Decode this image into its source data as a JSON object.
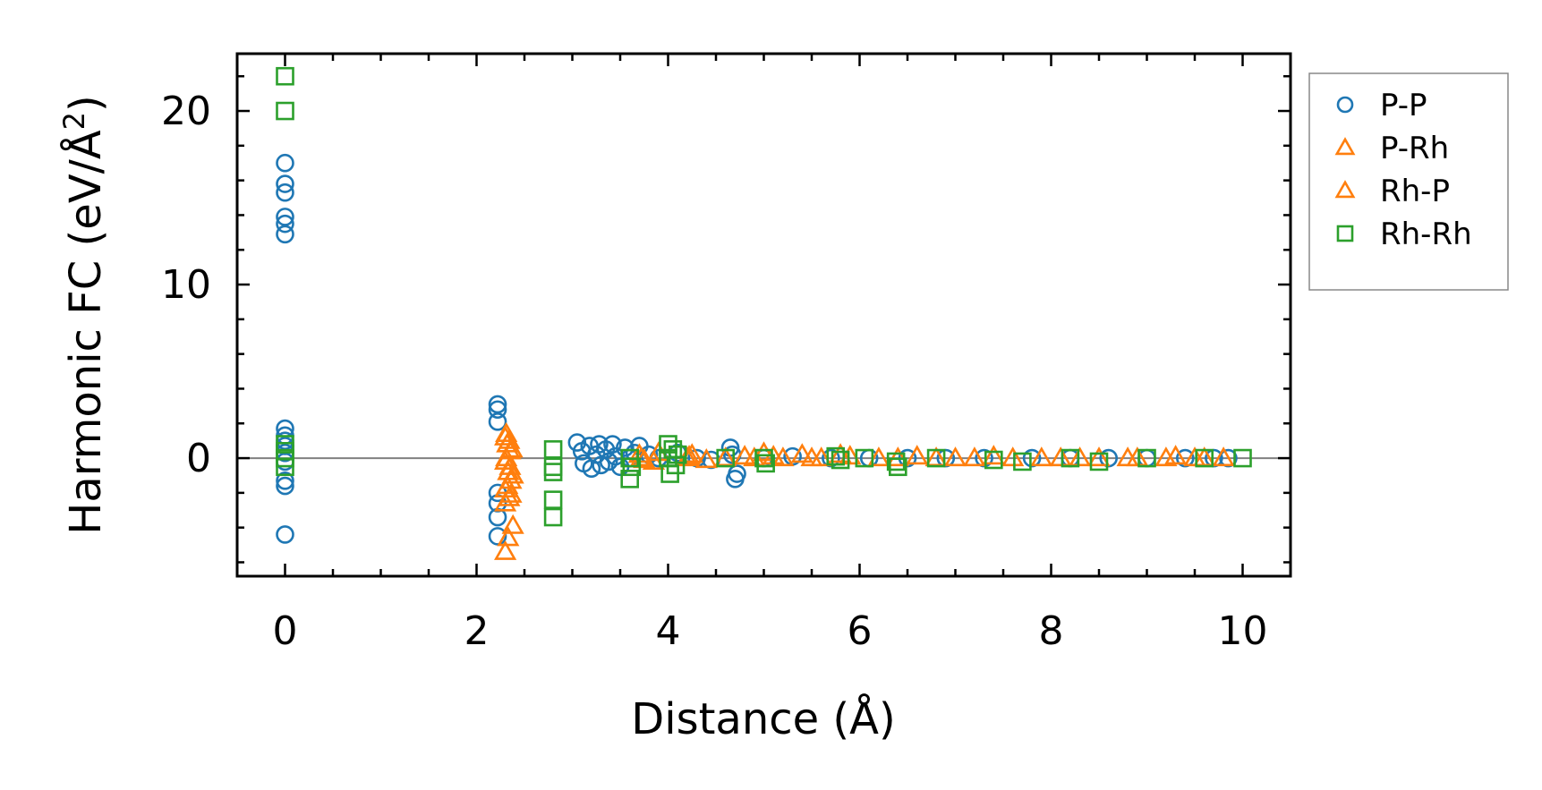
{
  "chart_data": {
    "type": "scatter",
    "xlabel": "Distance (Å)",
    "ylabel_main": "Harmonic FC (eV/Å",
    "ylabel_sup": "2",
    "ylabel_end": ")",
    "xlim": [
      -0.5,
      10.5
    ],
    "ylim": [
      -6.8,
      23.3
    ],
    "x_ticks": [
      0,
      2,
      4,
      6,
      8,
      10
    ],
    "x_tick_labels": [
      "0",
      "2",
      "4",
      "6",
      "8",
      "10"
    ],
    "y_ticks": [
      0,
      10,
      20
    ],
    "y_tick_labels": [
      "0",
      "10",
      "20"
    ],
    "x_minor_step": 0.5,
    "y_minor_step": 2,
    "zero_line": true,
    "grid": false,
    "legend_position": "outside-right-top",
    "series": [
      {
        "name": "P-P",
        "marker": "circle",
        "color": "#1f77b4",
        "points": [
          [
            0,
            17.0
          ],
          [
            0,
            15.8
          ],
          [
            0,
            15.3
          ],
          [
            0,
            13.9
          ],
          [
            0,
            13.5
          ],
          [
            0,
            12.9
          ],
          [
            0,
            1.7
          ],
          [
            0,
            1.3
          ],
          [
            0,
            1.0
          ],
          [
            0,
            0.7
          ],
          [
            0,
            0.3
          ],
          [
            0,
            -0.2
          ],
          [
            0,
            -1.3
          ],
          [
            0,
            -1.6
          ],
          [
            0,
            -4.4
          ],
          [
            2.22,
            3.1
          ],
          [
            2.22,
            2.8
          ],
          [
            2.22,
            2.1
          ],
          [
            2.22,
            -2.0
          ],
          [
            2.22,
            -2.6
          ],
          [
            2.22,
            -3.4
          ],
          [
            2.22,
            -4.5
          ],
          [
            3.05,
            0.9
          ],
          [
            3.1,
            0.4
          ],
          [
            3.12,
            -0.3
          ],
          [
            3.18,
            0.7
          ],
          [
            3.2,
            -0.6
          ],
          [
            3.25,
            0.2
          ],
          [
            3.28,
            0.8
          ],
          [
            3.3,
            -0.4
          ],
          [
            3.35,
            0.5
          ],
          [
            3.38,
            -0.2
          ],
          [
            3.42,
            0.8
          ],
          [
            3.45,
            0.1
          ],
          [
            3.5,
            -0.5
          ],
          [
            3.55,
            0.6
          ],
          [
            3.6,
            0.0
          ],
          [
            3.65,
            0.3
          ],
          [
            3.7,
            0.7
          ],
          [
            3.8,
            0.2
          ],
          [
            3.9,
            0.0
          ],
          [
            4.1,
            0.3
          ],
          [
            4.3,
            0.0
          ],
          [
            4.45,
            -0.1
          ],
          [
            4.65,
            0.6
          ],
          [
            4.67,
            0.2
          ],
          [
            4.7,
            -1.2
          ],
          [
            4.72,
            -0.9
          ],
          [
            5.0,
            0.0
          ],
          [
            5.3,
            0.1
          ],
          [
            5.7,
            0.0
          ],
          [
            6.1,
            0.0
          ],
          [
            6.5,
            0.0
          ],
          [
            6.9,
            0.0
          ],
          [
            7.3,
            0.0
          ],
          [
            7.8,
            0.0
          ],
          [
            8.2,
            0.0
          ],
          [
            8.6,
            0.0
          ],
          [
            9.0,
            0.0
          ],
          [
            9.4,
            0.0
          ],
          [
            9.7,
            0.0
          ],
          [
            9.85,
            0.0
          ]
        ]
      },
      {
        "name": "P-Rh",
        "marker": "triangle",
        "color": "#ff7f0e",
        "points": [
          [
            2.3,
            1.2
          ],
          [
            2.32,
            0.8
          ],
          [
            2.35,
            0.4
          ],
          [
            2.3,
            -0.2
          ],
          [
            2.33,
            -0.8
          ],
          [
            2.36,
            -1.3
          ],
          [
            2.3,
            -1.8
          ],
          [
            2.34,
            -2.3
          ],
          [
            3.7,
            0.2
          ],
          [
            3.75,
            -0.1
          ],
          [
            3.9,
            0.3
          ],
          [
            4.2,
            0.0
          ],
          [
            4.25,
            0.2
          ],
          [
            4.4,
            -0.1
          ],
          [
            4.8,
            0.1
          ],
          [
            5.0,
            0.3
          ],
          [
            5.2,
            0.0
          ],
          [
            5.4,
            0.2
          ],
          [
            5.6,
            0.0
          ],
          [
            5.9,
            0.1
          ],
          [
            6.2,
            0.0
          ],
          [
            6.6,
            0.1
          ],
          [
            7.0,
            0.0
          ],
          [
            7.4,
            0.1
          ],
          [
            7.9,
            0.0
          ],
          [
            8.3,
            0.0
          ],
          [
            8.8,
            0.0
          ],
          [
            9.3,
            0.1
          ],
          [
            9.5,
            0.0
          ],
          [
            9.8,
            0.0
          ]
        ]
      },
      {
        "name": "Rh-P",
        "marker": "triangle",
        "color": "#ff7f0e",
        "points": [
          [
            2.31,
            1.4
          ],
          [
            2.34,
            1.0
          ],
          [
            2.37,
            0.5
          ],
          [
            2.31,
            0.0
          ],
          [
            2.35,
            -0.5
          ],
          [
            2.38,
            -1.0
          ],
          [
            2.32,
            -1.6
          ],
          [
            2.36,
            -2.1
          ],
          [
            2.3,
            -2.6
          ],
          [
            2.38,
            -3.9
          ],
          [
            2.33,
            -4.6
          ],
          [
            2.3,
            -5.4
          ],
          [
            3.72,
            0.0
          ],
          [
            3.85,
            -0.2
          ],
          [
            4.22,
            0.1
          ],
          [
            4.6,
            0.0
          ],
          [
            4.9,
            0.0
          ],
          [
            5.1,
            0.1
          ],
          [
            5.5,
            0.0
          ],
          [
            5.8,
            0.2
          ],
          [
            6.4,
            0.0
          ],
          [
            6.8,
            0.0
          ],
          [
            7.2,
            0.0
          ],
          [
            7.6,
            0.0
          ],
          [
            8.1,
            0.0
          ],
          [
            8.5,
            0.0
          ],
          [
            8.9,
            0.0
          ],
          [
            9.2,
            0.0
          ],
          [
            9.6,
            0.0
          ]
        ]
      },
      {
        "name": "Rh-Rh",
        "marker": "square",
        "color": "#2ca02c",
        "points": [
          [
            0,
            22.0
          ],
          [
            0,
            20.0
          ],
          [
            0,
            0.8
          ],
          [
            0,
            0.4
          ],
          [
            0,
            0.0
          ],
          [
            0,
            -0.5
          ],
          [
            2.8,
            0.5
          ],
          [
            2.8,
            -0.5
          ],
          [
            2.8,
            -0.8
          ],
          [
            2.8,
            -2.4
          ],
          [
            2.8,
            -3.4
          ],
          [
            3.6,
            0.0
          ],
          [
            3.62,
            -0.5
          ],
          [
            3.6,
            -1.2
          ],
          [
            4.0,
            0.8
          ],
          [
            4.05,
            0.5
          ],
          [
            4.1,
            0.2
          ],
          [
            4.0,
            0.0
          ],
          [
            4.08,
            -0.4
          ],
          [
            4.02,
            -0.9
          ],
          [
            4.6,
            0.0
          ],
          [
            5.0,
            0.0
          ],
          [
            5.02,
            -0.3
          ],
          [
            5.75,
            0.1
          ],
          [
            5.8,
            -0.1
          ],
          [
            6.05,
            0.0
          ],
          [
            6.38,
            -0.2
          ],
          [
            6.4,
            -0.5
          ],
          [
            6.8,
            0.0
          ],
          [
            7.4,
            -0.1
          ],
          [
            7.7,
            -0.2
          ],
          [
            8.2,
            0.0
          ],
          [
            8.5,
            -0.2
          ],
          [
            9.0,
            0.0
          ],
          [
            9.6,
            0.0
          ],
          [
            10.0,
            0.0
          ]
        ]
      }
    ]
  }
}
